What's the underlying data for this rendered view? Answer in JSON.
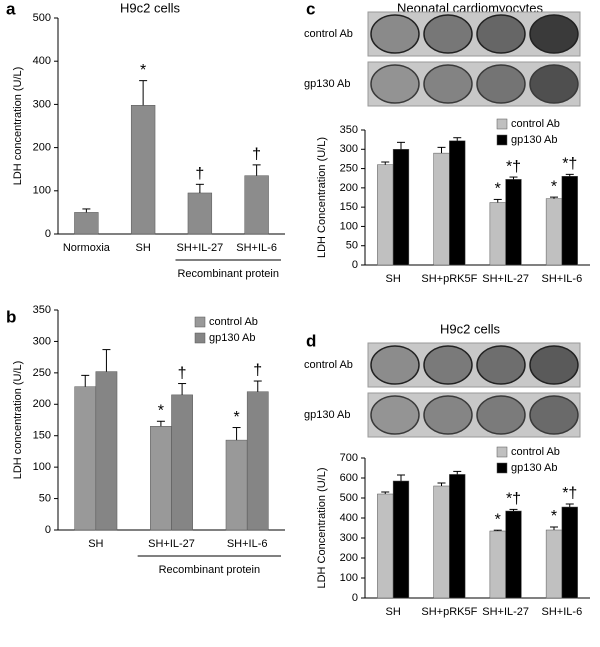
{
  "chart_data": [
    {
      "type": "bar",
      "panel": "a",
      "title": "H9c2 cells",
      "ylabel": "LDH concentration (U/L)",
      "categories": [
        "Normoxia",
        "SH",
        "SH+IL-27",
        "SH+IL-6"
      ],
      "group_label": "Recombinant protein",
      "values": [
        50,
        298,
        95,
        135
      ],
      "errors": [
        8,
        57,
        20,
        25
      ],
      "markers": [
        null,
        "*",
        "†",
        "†"
      ],
      "color": "#8c8c8c",
      "ylim": [
        0,
        500
      ],
      "yticks": [
        0,
        100,
        200,
        300,
        400,
        500
      ]
    },
    {
      "type": "bar",
      "panel": "b",
      "ylabel": "LDH concentration (U/L)",
      "categories": [
        "SH",
        "SH+IL-27",
        "SH+IL-6"
      ],
      "group_label": "Recombinant protein",
      "series": [
        {
          "name": "control Ab",
          "color": "#999999",
          "values": [
            228,
            165,
            143
          ],
          "errors": [
            18,
            8,
            20
          ],
          "markers": [
            null,
            "*",
            "*"
          ]
        },
        {
          "name": "gp130 Ab",
          "color": "#858585",
          "values": [
            252,
            215,
            220
          ],
          "errors": [
            35,
            18,
            17
          ],
          "markers": [
            null,
            "†",
            "†"
          ]
        }
      ],
      "ylim": [
        0,
        350
      ],
      "yticks": [
        0,
        50,
        100,
        150,
        200,
        250,
        300,
        350
      ]
    },
    {
      "type": "bar",
      "panel": "c",
      "title": "Neonatal cardiomyocytes",
      "ylabel": "LDH Concentration (U/L)",
      "rows": [
        "control Ab",
        "gp130 Ab"
      ],
      "categories": [
        "SH",
        "SH+pRK5F",
        "SH+IL-27",
        "SH+IL-6"
      ],
      "series": [
        {
          "name": "control Ab",
          "color": "#c0c0c0",
          "values": [
            260,
            290,
            162,
            172
          ],
          "errors": [
            7,
            15,
            8,
            4
          ],
          "markers": [
            null,
            null,
            "*",
            "*"
          ]
        },
        {
          "name": "gp130 Ab",
          "color": "#000000",
          "values": [
            300,
            322,
            222,
            230
          ],
          "errors": [
            18,
            8,
            6,
            5
          ],
          "markers": [
            null,
            null,
            "*†",
            "*†"
          ]
        }
      ],
      "ylim": [
        0,
        350
      ],
      "yticks": [
        0,
        50,
        100,
        150,
        200,
        250,
        300,
        350
      ]
    },
    {
      "type": "bar",
      "panel": "d",
      "title": "H9c2 cells",
      "ylabel": "LDH Concentration (U/L)",
      "rows": [
        "control Ab",
        "gp130 Ab"
      ],
      "categories": [
        "SH",
        "SH+pRK5F",
        "SH+IL-27",
        "SH+IL-6"
      ],
      "series": [
        {
          "name": "control Ab",
          "color": "#c0c0c0",
          "values": [
            520,
            560,
            335,
            340
          ],
          "errors": [
            10,
            15,
            4,
            15
          ],
          "markers": [
            null,
            null,
            "*",
            "*"
          ]
        },
        {
          "name": "gp130 Ab",
          "color": "#000000",
          "values": [
            585,
            618,
            435,
            455
          ],
          "errors": [
            30,
            15,
            8,
            15
          ],
          "markers": [
            null,
            null,
            "*†",
            "*†"
          ]
        }
      ],
      "ylim": [
        0,
        700
      ],
      "yticks": [
        0,
        100,
        200,
        300,
        400,
        500,
        600,
        700
      ]
    }
  ]
}
